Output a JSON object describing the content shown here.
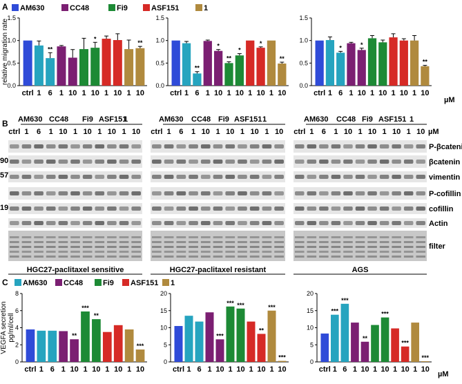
{
  "colors": {
    "AM630": "#2f4bd8",
    "CC48": "#26a4bf",
    "Fi9": "#7b1f72",
    "ASF151": "#1d8a35",
    "1": "#d62a26",
    "ctrl": "#b08a3e",
    "blot": "#555555"
  },
  "panel_labels": {
    "a": "A",
    "b": "B",
    "c": "C"
  },
  "legend": {
    "a": [
      "AM630",
      "CC48",
      "Fi9",
      "ASF151",
      "1"
    ],
    "c": [
      "AM630",
      "CC48",
      "Fi9",
      "ASF151",
      "1"
    ]
  },
  "unit": "µM",
  "chart_data": [
    {
      "type": "bar",
      "panel": "A1",
      "categories": [
        "ctrl",
        "1",
        "6",
        "1",
        "10",
        "1",
        "10",
        "1",
        "10",
        "1",
        "10"
      ],
      "values": [
        1.0,
        0.89,
        0.61,
        0.87,
        0.62,
        0.81,
        0.84,
        1.04,
        1.01,
        0.81,
        0.83
      ],
      "errors": [
        0.0,
        0.1,
        0.12,
        0.02,
        0.18,
        0.24,
        0.12,
        0.06,
        0.14,
        0.2,
        0.04
      ],
      "colors": [
        "#2f4bd8",
        "#26a4bf",
        "#26a4bf",
        "#7b1f72",
        "#7b1f72",
        "#1d8a35",
        "#1d8a35",
        "#d62a26",
        "#d62a26",
        "#b08a3e",
        "#b08a3e"
      ],
      "sig": [
        "",
        "",
        "**",
        "",
        "",
        "",
        "*",
        "",
        "",
        "",
        "**"
      ],
      "ylabel": "relative migration rate",
      "yticks": [
        "0.0",
        "0.5",
        "1.0",
        "1.5"
      ],
      "ylim": [
        0,
        1.5
      ]
    },
    {
      "type": "bar",
      "panel": "A2",
      "categories": [
        "ctrl",
        "1",
        "6",
        "1",
        "10",
        "1",
        "10",
        "1",
        "10",
        "1",
        "10"
      ],
      "values": [
        1.0,
        0.94,
        0.27,
        0.99,
        0.77,
        0.5,
        0.67,
        1.0,
        0.84,
        1.0,
        0.49
      ],
      "errors": [
        0.0,
        0.04,
        0.04,
        0.02,
        0.03,
        0.03,
        0.04,
        0.0,
        0.02,
        0.0,
        0.03
      ],
      "colors": [
        "#2f4bd8",
        "#26a4bf",
        "#26a4bf",
        "#7b1f72",
        "#7b1f72",
        "#1d8a35",
        "#1d8a35",
        "#d62a26",
        "#d62a26",
        "#b08a3e",
        "#b08a3e"
      ],
      "sig": [
        "",
        "",
        "**",
        "",
        "*",
        "**",
        "*",
        "",
        "*",
        "",
        "**"
      ],
      "ylabel": "",
      "yticks": [
        "0.0",
        "0.5",
        "1.0",
        "1.5"
      ],
      "ylim": [
        0,
        1.5
      ]
    },
    {
      "type": "bar",
      "panel": "A3",
      "categories": [
        "ctrl",
        "1",
        "6",
        "1",
        "10",
        "1",
        "10",
        "1",
        "10",
        "1",
        "10"
      ],
      "values": [
        1.0,
        1.01,
        0.73,
        0.94,
        0.79,
        1.05,
        0.96,
        1.07,
        1.0,
        1.0,
        0.43
      ],
      "errors": [
        0.0,
        0.07,
        0.03,
        0.02,
        0.04,
        0.06,
        0.05,
        0.08,
        0.04,
        0.11,
        0.02
      ],
      "colors": [
        "#2f4bd8",
        "#26a4bf",
        "#26a4bf",
        "#7b1f72",
        "#7b1f72",
        "#1d8a35",
        "#1d8a35",
        "#d62a26",
        "#d62a26",
        "#b08a3e",
        "#b08a3e"
      ],
      "sig": [
        "",
        "",
        "*",
        "",
        "*",
        "",
        "",
        "",
        "",
        "",
        "**"
      ],
      "ylabel": "",
      "yticks": [
        "0.0",
        "0.5",
        "1.0",
        "1.5"
      ],
      "ylim": [
        0,
        1.5
      ]
    },
    {
      "type": "bar",
      "panel": "C1",
      "categories": [
        "ctrl",
        "1",
        "6",
        "1",
        "10",
        "1",
        "10",
        "1",
        "10",
        "1",
        "10"
      ],
      "values": [
        3.8,
        3.65,
        3.65,
        3.6,
        2.65,
        5.9,
        5.0,
        3.5,
        4.3,
        3.8,
        1.45
      ],
      "colors": [
        "#2f4bd8",
        "#26a4bf",
        "#26a4bf",
        "#7b1f72",
        "#7b1f72",
        "#1d8a35",
        "#1d8a35",
        "#d62a26",
        "#d62a26",
        "#b08a3e",
        "#b08a3e"
      ],
      "sig": [
        "",
        "",
        "",
        "",
        "**",
        "***",
        "**",
        "",
        "",
        "",
        "***"
      ],
      "ylabel": "VEGFA secretion",
      "ylabel2": "pg/ml/cell",
      "yticks": [
        "0",
        "2",
        "4",
        "6",
        "8"
      ],
      "ylim": [
        0,
        8
      ]
    },
    {
      "type": "bar",
      "panel": "C2",
      "categories": [
        "ctrl",
        "1",
        "6",
        "1",
        "10",
        "1",
        "10",
        "1",
        "10",
        "1",
        "10"
      ],
      "values": [
        10.5,
        13.5,
        11.8,
        14.5,
        6.6,
        16.2,
        15.6,
        11.8,
        8.2,
        15.0,
        0.3
      ],
      "colors": [
        "#2f4bd8",
        "#26a4bf",
        "#26a4bf",
        "#7b1f72",
        "#7b1f72",
        "#1d8a35",
        "#1d8a35",
        "#d62a26",
        "#d62a26",
        "#b08a3e",
        "#b08a3e"
      ],
      "sig": [
        "",
        "",
        "",
        "",
        "***",
        "***",
        "***",
        "",
        "**",
        "***",
        "***"
      ],
      "ylabel": "",
      "yticks": [
        "0",
        "5",
        "10",
        "15",
        "20"
      ],
      "ylim": [
        0,
        20
      ]
    },
    {
      "type": "bar",
      "panel": "C3",
      "categories": [
        "ctrl",
        "1",
        "6",
        "1",
        "10",
        "1",
        "10",
        "1",
        "10",
        "1",
        "10"
      ],
      "values": [
        8.3,
        13.8,
        17.0,
        11.5,
        5.9,
        10.8,
        13.0,
        9.8,
        4.5,
        11.5,
        0.2
      ],
      "colors": [
        "#2f4bd8",
        "#26a4bf",
        "#26a4bf",
        "#7b1f72",
        "#7b1f72",
        "#1d8a35",
        "#1d8a35",
        "#d62a26",
        "#d62a26",
        "#b08a3e",
        "#b08a3e"
      ],
      "sig": [
        "",
        "***",
        "***",
        "",
        "**",
        "",
        "***",
        "",
        "***",
        "",
        "***"
      ],
      "ylabel": "",
      "yticks": [
        "0",
        "5",
        "10",
        "15",
        "20"
      ],
      "ylim": [
        0,
        20
      ]
    }
  ],
  "blots": {
    "groups": [
      "AM630",
      "CC48",
      "Fi9",
      "ASF151",
      "1"
    ],
    "lanes": [
      "ctrl",
      "1",
      "6",
      "1",
      "10",
      "1",
      "10",
      "1",
      "10",
      "1",
      "10"
    ],
    "rows": [
      "P-βcatenin",
      "βcatenin",
      "vimentin",
      "P-cofillin",
      "cofillin",
      "Actin",
      "filter"
    ],
    "markers": [
      "90",
      "57",
      "19"
    ],
    "cell_lines": [
      "HGC27-paclitaxel sensitive",
      "HGC27-paclitaxel resistant",
      "AGS"
    ]
  }
}
